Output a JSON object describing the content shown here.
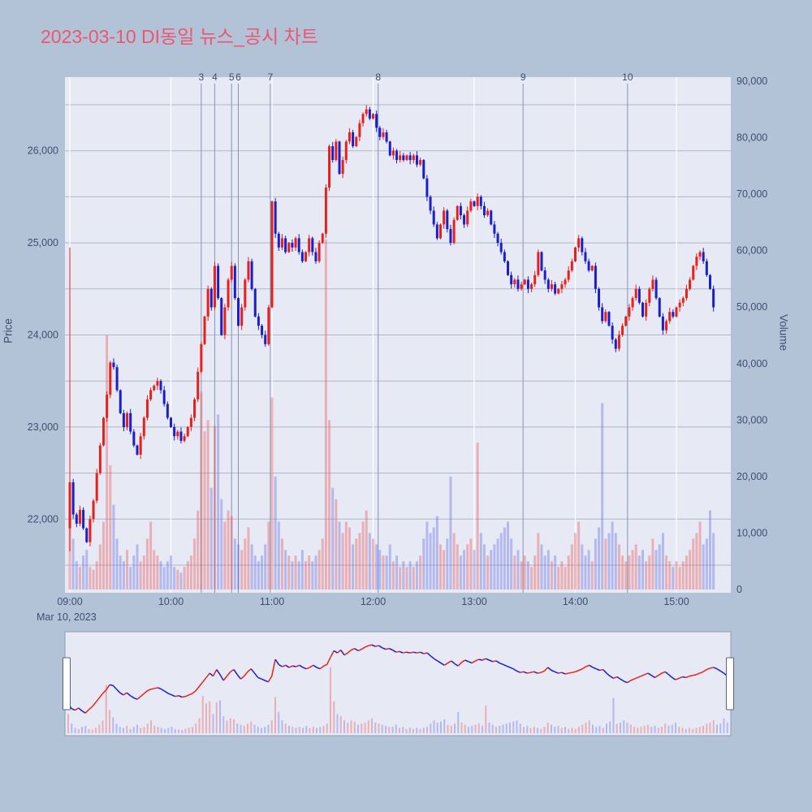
{
  "page": {
    "background": "#b2c3d8"
  },
  "header": {
    "title": "2023-03-10 DI동일 뉴스_공시 차트",
    "title_color": "#ee5570"
  },
  "chart_data": {
    "type": "candlestick",
    "title": "2023-03-10 DI동일 뉴스_공시 차트",
    "xlabel_date": "Mar 10, 2023",
    "ylabel_left": "Price",
    "ylabel_right": "Volume",
    "x_start": "09:00",
    "x_interval_minutes": 2,
    "x_ticks": [
      "09:00",
      "10:00",
      "11:00",
      "12:00",
      "13:00",
      "14:00",
      "15:00"
    ],
    "price_ticks": [
      22000,
      23000,
      24000,
      25000,
      26000
    ],
    "volume_ticks": [
      0,
      10000,
      20000,
      30000,
      40000,
      50000,
      60000,
      70000,
      80000,
      90000
    ],
    "price_range": [
      21200,
      26800
    ],
    "volume_range": [
      0,
      90000
    ],
    "grid": "on",
    "legend": "none",
    "rangeslider": true,
    "annotations": [
      {
        "label": "3",
        "minute": 78
      },
      {
        "label": "4",
        "minute": 86
      },
      {
        "label": "5",
        "minute": 96
      },
      {
        "label": "6",
        "minute": 100
      },
      {
        "label": "7",
        "minute": 119
      },
      {
        "label": "8",
        "minute": 183
      },
      {
        "label": "9",
        "minute": 269
      },
      {
        "label": "10",
        "minute": 331
      }
    ],
    "open_first": 21900,
    "opening_range_spike": {
      "high": 24950,
      "low": 21650
    },
    "close": [
      22400,
      22050,
      21950,
      22100,
      21900,
      21750,
      22000,
      22200,
      22500,
      22800,
      23100,
      23350,
      23700,
      23650,
      23400,
      23150,
      23000,
      23150,
      22950,
      22800,
      22700,
      22900,
      23100,
      23300,
      23400,
      23450,
      23500,
      23400,
      23250,
      23100,
      23000,
      22900,
      22950,
      22850,
      22900,
      23000,
      23100,
      23300,
      23600,
      23900,
      24200,
      24500,
      24300,
      24750,
      24400,
      24000,
      24300,
      24600,
      24750,
      24400,
      24100,
      24300,
      24600,
      24800,
      24500,
      24200,
      24100,
      24000,
      23900,
      24300,
      25450,
      25100,
      24950,
      25050,
      24900,
      25000,
      24950,
      25050,
      24900,
      24800,
      24900,
      25050,
      24900,
      24800,
      25000,
      25100,
      25600,
      26050,
      25900,
      26100,
      25750,
      25900,
      26100,
      26200,
      26050,
      26150,
      26300,
      26400,
      26450,
      26350,
      26400,
      26250,
      26150,
      26200,
      26100,
      25950,
      26000,
      25900,
      25950,
      25900,
      25950,
      25900,
      25950,
      25850,
      25900,
      25700,
      25500,
      25350,
      25200,
      25050,
      25200,
      25350,
      25150,
      25000,
      25250,
      25400,
      25300,
      25200,
      25350,
      25450,
      25400,
      25500,
      25400,
      25300,
      25350,
      25200,
      25100,
      25000,
      24900,
      24800,
      24650,
      24550,
      24600,
      24500,
      24550,
      24600,
      24500,
      24550,
      24650,
      24900,
      24700,
      24600,
      24500,
      24550,
      24450,
      24500,
      24550,
      24600,
      24700,
      24800,
      24950,
      25050,
      24900,
      24800,
      24700,
      24750,
      24500,
      24300,
      24150,
      24250,
      24100,
      23950,
      23850,
      24000,
      24100,
      24200,
      24300,
      24400,
      24500,
      24350,
      24200,
      24350,
      24500,
      24600,
      24400,
      24200,
      24050,
      24150,
      24250,
      24200,
      24300,
      24350,
      24400,
      24500,
      24600,
      24750,
      24850,
      24900,
      24800,
      24650,
      24500,
      24300
    ],
    "volume": [
      18000,
      9000,
      5000,
      4000,
      6000,
      7000,
      4000,
      3500,
      5000,
      8000,
      12000,
      45000,
      22000,
      15000,
      9000,
      6000,
      5000,
      7000,
      4000,
      6000,
      8000,
      5000,
      6000,
      9000,
      12000,
      7000,
      6000,
      5000,
      4000,
      5000,
      6000,
      4000,
      3500,
      3000,
      4000,
      5000,
      6000,
      9000,
      14000,
      35000,
      28000,
      30000,
      18000,
      29000,
      31000,
      16000,
      12000,
      14000,
      13000,
      9000,
      8000,
      7000,
      9000,
      11000,
      8000,
      6000,
      5000,
      6000,
      8000,
      12000,
      34000,
      20000,
      12000,
      9000,
      7000,
      6000,
      5000,
      6000,
      5000,
      7000,
      5000,
      6000,
      5000,
      6000,
      7000,
      9000,
      62000,
      30000,
      18000,
      16000,
      12000,
      10000,
      12000,
      11000,
      8000,
      9000,
      10000,
      12000,
      14000,
      10000,
      9000,
      8000,
      7000,
      6000,
      6000,
      8000,
      5000,
      6000,
      4000,
      5000,
      4000,
      5000,
      4000,
      5000,
      6000,
      9000,
      12000,
      10000,
      11000,
      13000,
      8000,
      7000,
      9000,
      20000,
      10000,
      8000,
      6000,
      7000,
      8000,
      9000,
      7000,
      26000,
      10000,
      8000,
      6000,
      7000,
      8000,
      9000,
      10000,
      11000,
      12000,
      9000,
      6000,
      7000,
      5000,
      6000,
      5000,
      4000,
      6000,
      10000,
      8000,
      6000,
      7000,
      5000,
      6000,
      4000,
      5000,
      4000,
      6000,
      8000,
      10000,
      12000,
      8000,
      6000,
      7000,
      5000,
      9000,
      11000,
      33000,
      9000,
      10000,
      12000,
      10000,
      8000,
      6000,
      5000,
      6000,
      7000,
      8000,
      6000,
      7000,
      5000,
      6000,
      9000,
      7000,
      8000,
      10000,
      6000,
      5000,
      4000,
      5000,
      4000,
      5000,
      6000,
      7000,
      9000,
      10000,
      12000,
      8000,
      9000,
      14000,
      10000
    ],
    "colors": {
      "up": "#e8201a",
      "down": "#1a1ecb",
      "volume_up": "rgba(235,80,80,0.38)",
      "volume_down": "rgba(95,105,225,0.38)",
      "plot_bg": "#e7eaf5",
      "grid_h": "rgba(110,120,145,0.45)",
      "grid_v": "#ffffff",
      "annotation_line": "#8593b8",
      "slider_border": "#8d99b5",
      "handle_fill": "#ffffff",
      "handle_border": "#5a6478"
    }
  }
}
